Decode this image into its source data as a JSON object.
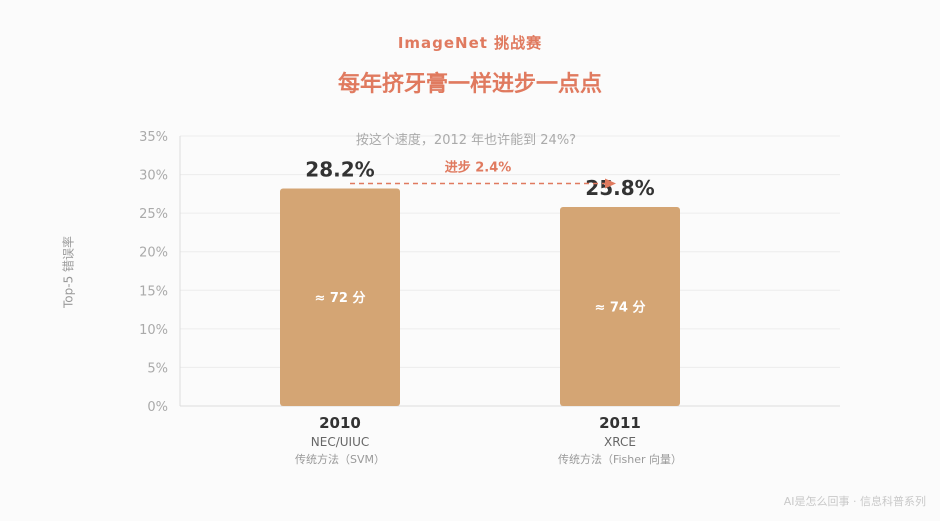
{
  "header": {
    "subtitle": "ImageNet 挑战赛",
    "title": "每年挤牙膏一样进步一点点"
  },
  "watermark": "AI是怎么回事 · 信息科普系列",
  "chart_data": {
    "type": "bar",
    "ylabel": "Top-5 错误率",
    "ylim": [
      0,
      35
    ],
    "yticks": [
      "0%",
      "5%",
      "10%",
      "15%",
      "20%",
      "25%",
      "30%",
      "35%"
    ],
    "grid": true,
    "bar_color": "#d4a574",
    "accent_color": "#e07a5f",
    "categories": [
      "2010",
      "2011"
    ],
    "teams": [
      "NEC/UIUC",
      "XRCE"
    ],
    "methods": [
      "传统方法（SVM）",
      "传统方法（Fisher 向量）"
    ],
    "values": [
      28.2,
      25.8
    ],
    "value_labels": [
      "28.2%",
      "25.8%"
    ],
    "score_labels": [
      "≈ 72 分",
      "≈ 74 分"
    ],
    "annotations": {
      "improvement": "进步 2.4%",
      "question": "按这个速度，2012 年也许能到 24%?"
    }
  }
}
